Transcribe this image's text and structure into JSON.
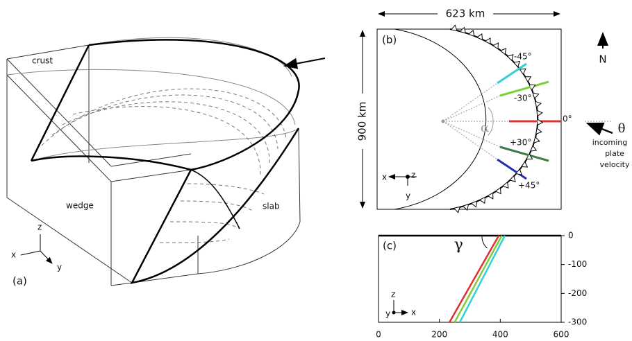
{
  "figure": {
    "panel_a": {
      "label": "(a)",
      "crust": "crust",
      "wedge": "wedge",
      "slab": "slab",
      "axes": {
        "x": "x",
        "y": "y",
        "z": "z"
      }
    },
    "panel_b": {
      "label": "(b)",
      "width": "623 km",
      "height": "900 km",
      "north": "N",
      "theta": "θ",
      "velocity": [
        "incoming",
        "plate",
        "velocity"
      ],
      "alpha": "α",
      "angles": [
        "-45°",
        "-30°",
        "0°",
        "+30°",
        "+45°"
      ],
      "axes": {
        "x": "x",
        "y": "y",
        "z": "z"
      }
    }
  },
  "chart_data": {
    "type": "line",
    "label": "(c)",
    "annotation": "γ",
    "axis_labels": {
      "x": "x",
      "y": "y",
      "z": "z"
    },
    "xlim": [
      0,
      600
    ],
    "xticks": [
      0,
      200,
      400,
      600
    ],
    "ylim": [
      -300,
      0
    ],
    "yticks": [
      0,
      -100,
      -200,
      -300
    ],
    "series": [
      {
        "color": "#e03030",
        "x": [
          395,
          233
        ],
        "values": [
          0,
          -300
        ]
      },
      {
        "color": "#7ccf3a",
        "x": [
          405,
          250
        ],
        "values": [
          0,
          -300
        ]
      },
      {
        "color": "#33d0d8",
        "x": [
          415,
          267
        ],
        "values": [
          0,
          -300
        ]
      }
    ]
  }
}
